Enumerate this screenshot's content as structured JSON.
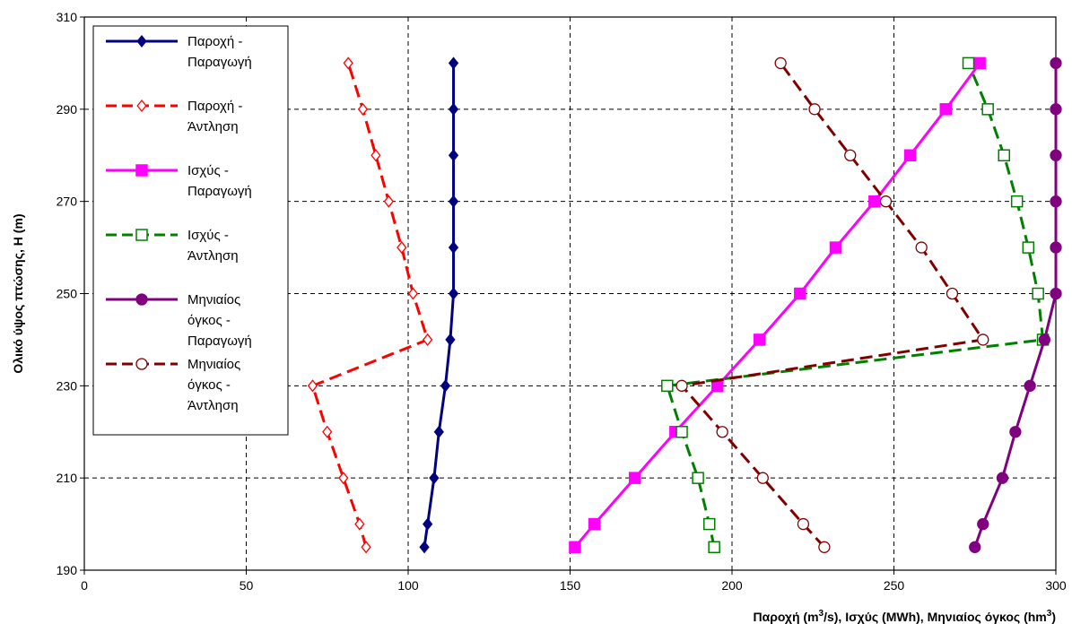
{
  "chart_data": {
    "type": "line",
    "xlabel": "Παροχή (m³/s),  Ισχύς (MWh),  Μηνιαίος όγκος (hm³)",
    "xlabel_parts": [
      "Παροχή (m",
      "3",
      "/s),  Ισχύς (MWh),  Μηνιαίος όγκος (hm",
      "3",
      ")"
    ],
    "ylabel": "Ολικό ύψος πτώσης, H (m)",
    "xlim": [
      0,
      300
    ],
    "ylim": [
      190,
      310
    ],
    "xticks": [
      "0",
      "50",
      "100",
      "150",
      "200",
      "250",
      "300"
    ],
    "yticks": [
      "190",
      "210",
      "230",
      "250",
      "270",
      "290",
      "310"
    ],
    "grid": true,
    "legend_position": "top-left",
    "series": [
      {
        "name": "Παροχή - Παραγωγή",
        "legend_lines": [
          "Παροχή -",
          "Παραγωγή"
        ],
        "color": "#000080",
        "dash": "solid",
        "marker": "diamond",
        "filled": true,
        "points": [
          [
            105,
            195
          ],
          [
            106,
            200
          ],
          [
            108,
            210
          ],
          [
            109.5,
            220
          ],
          [
            111.5,
            230
          ],
          [
            113,
            240
          ],
          [
            114,
            250
          ],
          [
            114,
            260
          ],
          [
            114,
            270
          ],
          [
            114,
            280
          ],
          [
            114,
            290
          ],
          [
            114,
            300
          ]
        ]
      },
      {
        "name": "Παροχή - Άντληση",
        "legend_lines": [
          "Παροχή -",
          "Άντληση"
        ],
        "color": "#ff0000",
        "dash": "dashed",
        "marker": "diamond",
        "filled": false,
        "points": [
          [
            87,
            195
          ],
          [
            85,
            200
          ],
          [
            80,
            210
          ],
          [
            75,
            220
          ],
          [
            70.5,
            230
          ],
          [
            106,
            240
          ],
          [
            101.5,
            250
          ],
          [
            98,
            260
          ],
          [
            94,
            270
          ],
          [
            90,
            280
          ],
          [
            86,
            290
          ],
          [
            81.5,
            300
          ]
        ]
      },
      {
        "name": "Ισχύς - Παραγωγή",
        "legend_lines": [
          "Ισχύς -",
          "Παραγωγή"
        ],
        "color": "#ff00ff",
        "dash": "solid",
        "marker": "square",
        "filled": true,
        "points": [
          [
            151.5,
            195
          ],
          [
            157.5,
            200
          ],
          [
            170,
            210
          ],
          [
            182.5,
            220
          ],
          [
            195.5,
            230
          ],
          [
            208.5,
            240
          ],
          [
            221,
            250
          ],
          [
            232,
            260
          ],
          [
            244,
            270
          ],
          [
            255,
            280
          ],
          [
            266,
            290
          ],
          [
            276.5,
            300
          ]
        ]
      },
      {
        "name": "Ισχύς - Άντληση",
        "legend_lines": [
          "Ισχύς -",
          "Άντληση"
        ],
        "color": "#008000",
        "dash": "dashed",
        "marker": "square",
        "filled": false,
        "points": [
          [
            194.5,
            195
          ],
          [
            193,
            200
          ],
          [
            189.5,
            210
          ],
          [
            184.5,
            220
          ],
          [
            180,
            230
          ],
          [
            296,
            240
          ],
          [
            294.5,
            250
          ],
          [
            291.5,
            260
          ],
          [
            288,
            270
          ],
          [
            284,
            280
          ],
          [
            279,
            290
          ],
          [
            273,
            300
          ]
        ]
      },
      {
        "name": "Μηνιαίος όγκος - Παραγωγή",
        "legend_lines": [
          "Μηνιαίος",
          "όγκος -",
          "Παραγωγή"
        ],
        "color": "#800080",
        "dash": "solid",
        "marker": "circle",
        "filled": true,
        "points": [
          [
            275,
            195
          ],
          [
            277.5,
            200
          ],
          [
            283.5,
            210
          ],
          [
            287.5,
            220
          ],
          [
            292,
            230
          ],
          [
            296.5,
            240
          ],
          [
            300,
            250
          ],
          [
            300,
            260
          ],
          [
            300,
            270
          ],
          [
            300,
            280
          ],
          [
            300,
            290
          ],
          [
            300,
            300
          ]
        ]
      },
      {
        "name": "Μηνιαίος όγκος - Άντληση",
        "legend_lines": [
          "Μηνιαίος",
          "όγκος -",
          "Άντληση"
        ],
        "color": "#800000",
        "dash": "dashed",
        "marker": "circle",
        "filled": false,
        "points": [
          [
            228.5,
            195
          ],
          [
            222,
            200
          ],
          [
            209.5,
            210
          ],
          [
            197,
            220
          ],
          [
            184.5,
            230
          ],
          [
            277.5,
            240
          ],
          [
            268,
            250
          ],
          [
            258.5,
            260
          ],
          [
            247.5,
            270
          ],
          [
            236.5,
            280
          ],
          [
            225.5,
            290
          ],
          [
            215,
            300
          ]
        ]
      }
    ]
  }
}
